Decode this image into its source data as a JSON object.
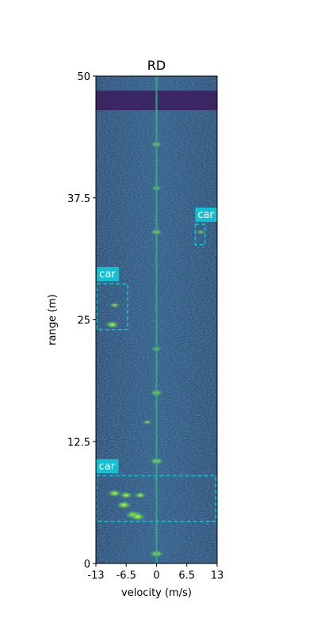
{
  "chart_data": {
    "type": "heatmap",
    "title": "RD",
    "xlabel": "velocity (m/s)",
    "ylabel": "range (m)",
    "xlim": [
      -13,
      13
    ],
    "ylim": [
      0,
      50
    ],
    "xticks": [
      -13,
      -6.5,
      0,
      6.5,
      13
    ],
    "xtick_labels": [
      "-13",
      "-6.5",
      "0",
      "6.5",
      "13"
    ],
    "yticks": [
      0,
      12.5,
      25,
      37.5,
      50
    ],
    "ytick_labels": [
      "0",
      "12.5",
      "25",
      "37.5",
      "50"
    ],
    "colormap": "viridis",
    "grid": false,
    "zero_velocity_line": {
      "velocity": 0
    },
    "dark_band": {
      "range": [
        46.5,
        48.5
      ]
    },
    "hotspots": [
      {
        "velocity": -9.0,
        "range": 7.2,
        "intensity": 0.75
      },
      {
        "velocity": -7.0,
        "range": 6.0,
        "intensity": 0.85
      },
      {
        "velocity": -5.0,
        "range": 5.0,
        "intensity": 0.95
      },
      {
        "velocity": -4.0,
        "range": 4.8,
        "intensity": 0.9
      },
      {
        "velocity": -6.5,
        "range": 7.0,
        "intensity": 0.7
      },
      {
        "velocity": -3.5,
        "range": 7.0,
        "intensity": 0.6
      },
      {
        "velocity": -9.5,
        "range": 24.5,
        "intensity": 0.75
      },
      {
        "velocity": -9.0,
        "range": 26.5,
        "intensity": 0.45
      },
      {
        "velocity": 0.0,
        "range": 17.5,
        "intensity": 0.6
      },
      {
        "velocity": 0.0,
        "range": 10.5,
        "intensity": 0.7
      },
      {
        "velocity": 0.0,
        "range": 1.0,
        "intensity": 0.75
      },
      {
        "velocity": 0.0,
        "range": 34.0,
        "intensity": 0.55
      },
      {
        "velocity": 0.0,
        "range": 43.0,
        "intensity": 0.5
      },
      {
        "velocity": -2.0,
        "range": 14.5,
        "intensity": 0.4
      },
      {
        "velocity": 0.0,
        "range": 22.0,
        "intensity": 0.45
      },
      {
        "velocity": 0.0,
        "range": 38.5,
        "intensity": 0.45
      },
      {
        "velocity": 9.5,
        "range": 34.0,
        "intensity": 0.35
      }
    ],
    "boxes": [
      {
        "label": "car",
        "velocity": [
          -12.9,
          12.7
        ],
        "range": [
          4.3,
          9.0
        ],
        "color": "#17becf"
      },
      {
        "label": "car",
        "velocity": [
          -12.8,
          -6.2
        ],
        "range": [
          24.0,
          28.7
        ],
        "color": "#17becf"
      },
      {
        "label": "car",
        "velocity": [
          8.3,
          10.4
        ],
        "range": [
          32.7,
          34.8
        ],
        "color": "#17becf"
      }
    ]
  }
}
